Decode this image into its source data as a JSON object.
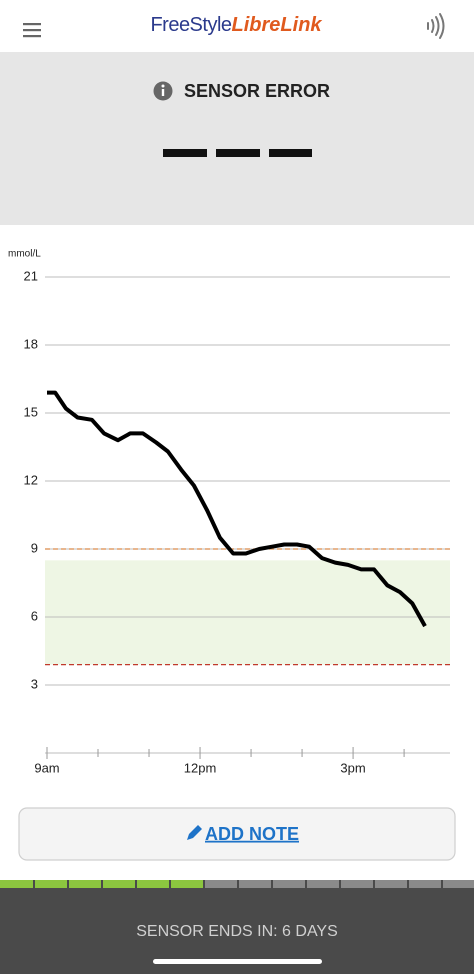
{
  "header": {
    "brand": [
      "FreeStyle",
      "LibreLink"
    ]
  },
  "status": {
    "message": "SENSOR ERROR"
  },
  "chart_data": {
    "type": "line",
    "y_label": "mmol/L",
    "x": [
      9.0,
      9.16,
      9.37,
      9.6,
      9.88,
      10.12,
      10.39,
      10.63,
      10.88,
      11.14,
      11.37,
      11.63,
      11.88,
      12.14,
      12.39,
      12.65,
      12.9,
      13.16,
      13.41,
      13.65,
      13.9,
      14.14,
      14.39,
      14.65,
      14.9,
      15.16,
      15.41,
      15.67,
      15.92,
      16.16,
      16.41
    ],
    "series": [
      {
        "color": "#000000",
        "values": [
          15.9,
          15.9,
          15.2,
          14.8,
          14.7,
          14.1,
          13.8,
          14.1,
          14.1,
          13.7,
          13.3,
          12.5,
          11.8,
          10.7,
          9.5,
          8.8,
          8.8,
          9.0,
          9.1,
          9.2,
          9.2,
          9.1,
          8.6,
          8.4,
          8.3,
          8.1,
          8.1,
          7.4,
          7.1,
          6.6,
          5.6
        ]
      }
    ],
    "xlim": [
      9,
      16.9
    ],
    "xticks": [
      {
        "value": 9,
        "label": "9am"
      },
      {
        "value": 12,
        "label": "12pm"
      },
      {
        "value": 15,
        "label": "3pm"
      }
    ],
    "xminorticks": [
      10,
      11,
      13,
      14,
      16
    ],
    "ylim": [
      0,
      21
    ],
    "yticks": [
      3,
      6,
      9,
      12,
      15,
      18,
      21
    ],
    "grid": true,
    "target_range": [
      3.9,
      8.5
    ],
    "target_color": "#eef6e4",
    "high_line": 9,
    "high_color": "#d98a4a",
    "low_line": 3.9,
    "low_color": "#c0392b"
  },
  "button": {
    "label": "ADD NOTE"
  },
  "footer": {
    "text": "SENSOR ENDS IN: 6 DAYS"
  }
}
